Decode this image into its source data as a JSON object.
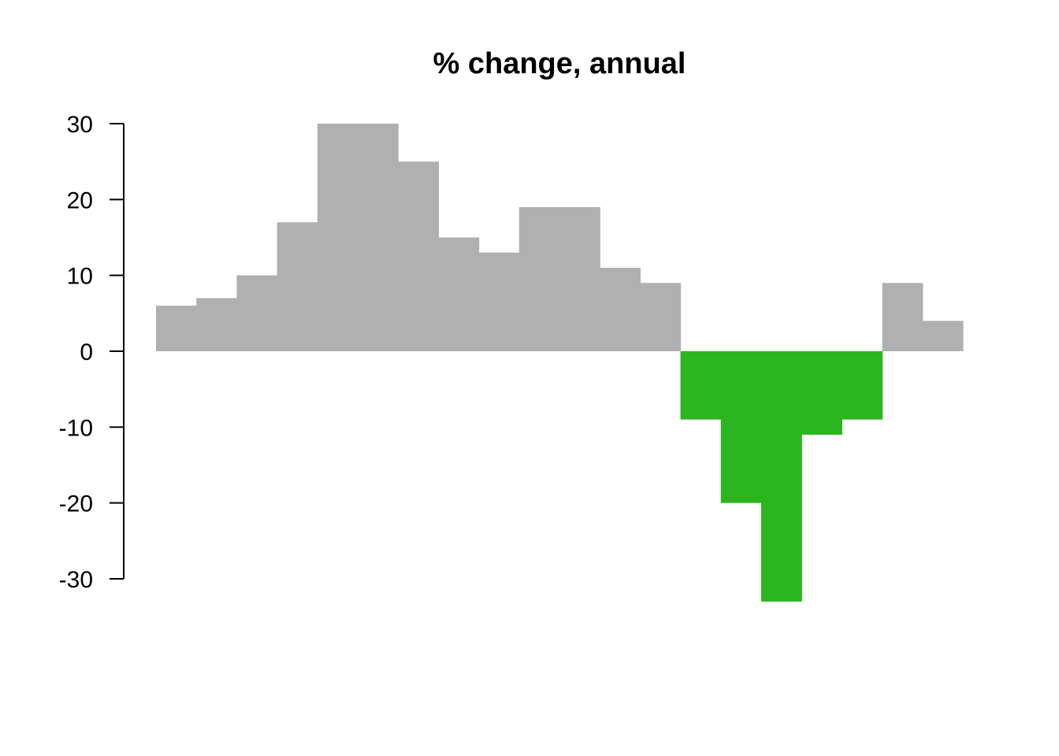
{
  "chart_data": {
    "type": "bar",
    "title": "% change, annual",
    "xlabel": "",
    "ylabel": "",
    "ylim": [
      -30,
      30
    ],
    "yticks": [
      30,
      20,
      10,
      0,
      -10,
      -20,
      -30
    ],
    "ytick_labels": [
      "30",
      "20",
      "10",
      "0",
      "-10",
      "-20",
      "-30"
    ],
    "grid": false,
    "legend": "none",
    "bar_spacing": "none",
    "colors": {
      "positive": "#B0B0B0",
      "negative": "#2BB51F"
    },
    "values": [
      6,
      7,
      10,
      17,
      30,
      30,
      25,
      15,
      13,
      19,
      19,
      11,
      9,
      -9,
      -20,
      -33,
      -11,
      -9,
      9,
      4
    ]
  }
}
